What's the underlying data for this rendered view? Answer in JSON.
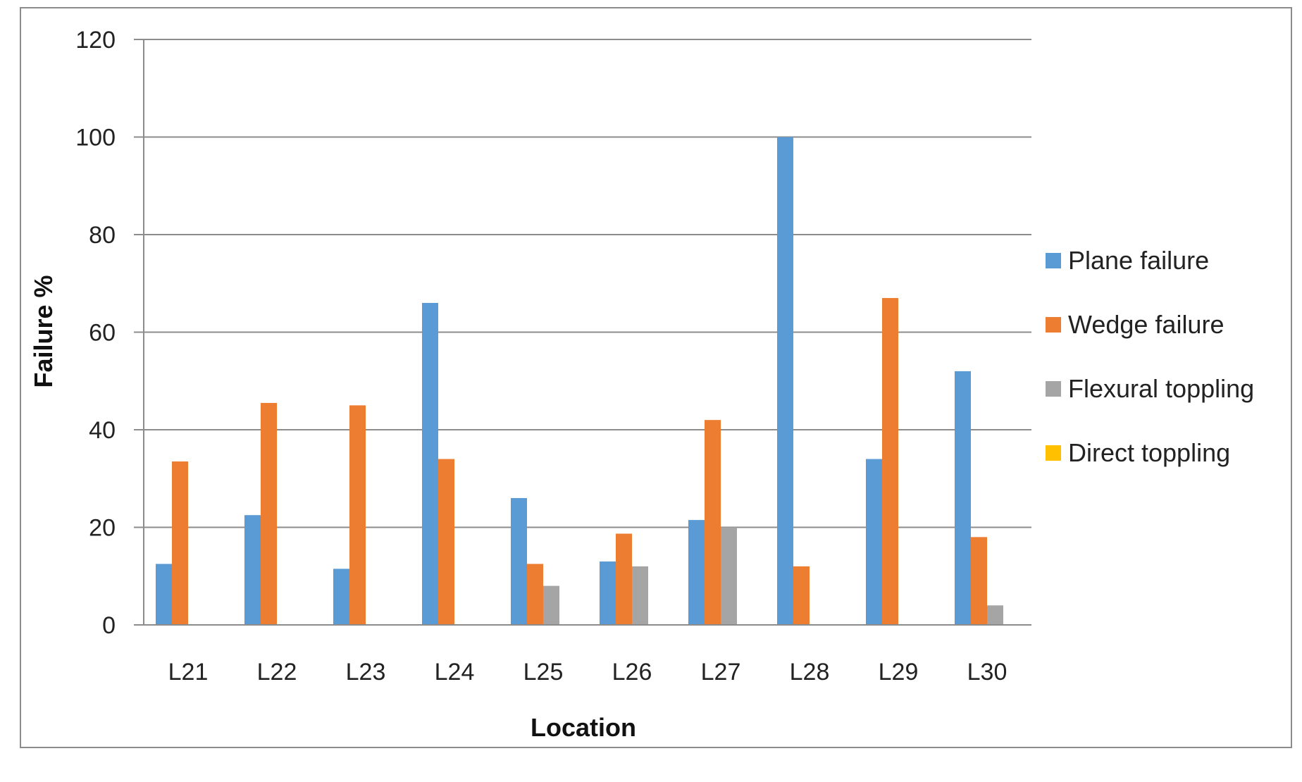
{
  "chart_data": {
    "type": "bar",
    "xlabel": "Location",
    "ylabel": "Failure %",
    "ylim": [
      0,
      120
    ],
    "yticks": [
      0,
      20,
      40,
      60,
      80,
      100,
      120
    ],
    "grid": true,
    "legend_position": "right",
    "categories": [
      "L21",
      "L22",
      "L23",
      "L24",
      "L25",
      "L26",
      "L27",
      "L28",
      "L29",
      "L30"
    ],
    "series": [
      {
        "name": "Plane failure",
        "color": "#5B9BD5",
        "values": [
          12.5,
          22.5,
          11.5,
          66,
          26,
          13,
          21.5,
          100,
          34,
          52
        ]
      },
      {
        "name": "Wedge failure",
        "color": "#ED7D31",
        "values": [
          33.5,
          45.5,
          45,
          34,
          12.5,
          18.7,
          42,
          12,
          67,
          18
        ]
      },
      {
        "name": "Flexural toppling",
        "color": "#A5A5A5",
        "values": [
          0,
          0,
          0,
          0,
          8,
          12,
          20,
          0,
          0,
          4
        ]
      },
      {
        "name": "Direct toppling",
        "color": "#FFC000",
        "values": [
          0,
          0,
          0,
          0,
          0,
          0,
          0,
          0,
          0,
          0
        ]
      }
    ]
  }
}
